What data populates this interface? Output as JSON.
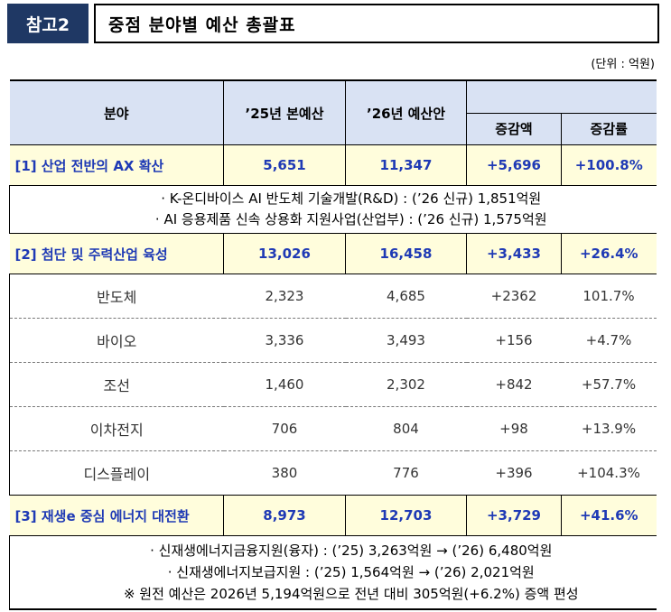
{
  "header": {
    "tag": "참고2",
    "title": "중점 분야별 예산 총괄표",
    "unit": "(단위 : 억원)"
  },
  "table": {
    "col_headers": {
      "field": "분야",
      "y25": "’25년 본예산",
      "y26": "’26년 예산안",
      "change_amount": "증감액",
      "change_rate": "증감률"
    },
    "categories": [
      {
        "name": "[1] 산업 전반의 AX 확산",
        "y25": "5,651",
        "y26": "11,347",
        "change_amount": "+5,696",
        "change_rate": "+100.8%",
        "notes": [
          "· K-온디바이스 AI 반도체 기술개발(R&D) : (’26 신규) 1,851억원",
          "· AI 응용제품 신속 상용화 지원사업(산업부) : (’26 신규) 1,575억원"
        ]
      },
      {
        "name": "[2] 첨단 및 주력산업 육성",
        "y25": "13,026",
        "y26": "16,458",
        "change_amount": "+3,433",
        "change_rate": "+26.4%",
        "subitems": [
          {
            "name": "반도체",
            "y25": "2,323",
            "y26": "4,685",
            "change_amount": "+2362",
            "change_rate": "101.7%"
          },
          {
            "name": "바이오",
            "y25": "3,336",
            "y26": "3,493",
            "change_amount": "+156",
            "change_rate": "+4.7%"
          },
          {
            "name": "조선",
            "y25": "1,460",
            "y26": "2,302",
            "change_amount": "+842",
            "change_rate": "+57.7%"
          },
          {
            "name": "이차전지",
            "y25": "706",
            "y26": "804",
            "change_amount": "+98",
            "change_rate": "+13.9%"
          },
          {
            "name": "디스플레이",
            "y25": "380",
            "y26": "776",
            "change_amount": "+396",
            "change_rate": "+104.3%"
          }
        ]
      },
      {
        "name": "[3] 재생e 중심 에너지 대전환",
        "y25": "8,973",
        "y26": "12,703",
        "change_amount": "+3,729",
        "change_rate": "+41.6%",
        "notes": [
          "· 신재생에너지금융지원(융자) : (’25) 3,263억원 → (’26) 6,480억원",
          "· 신재생에너지보급지원 : (’25) 1,564억원 → (’26) 2,021억원",
          "※ 원전 예산은 2026년 5,194억원으로 전년 대비 305억원(+6.2%) 증액 편성"
        ]
      }
    ]
  }
}
